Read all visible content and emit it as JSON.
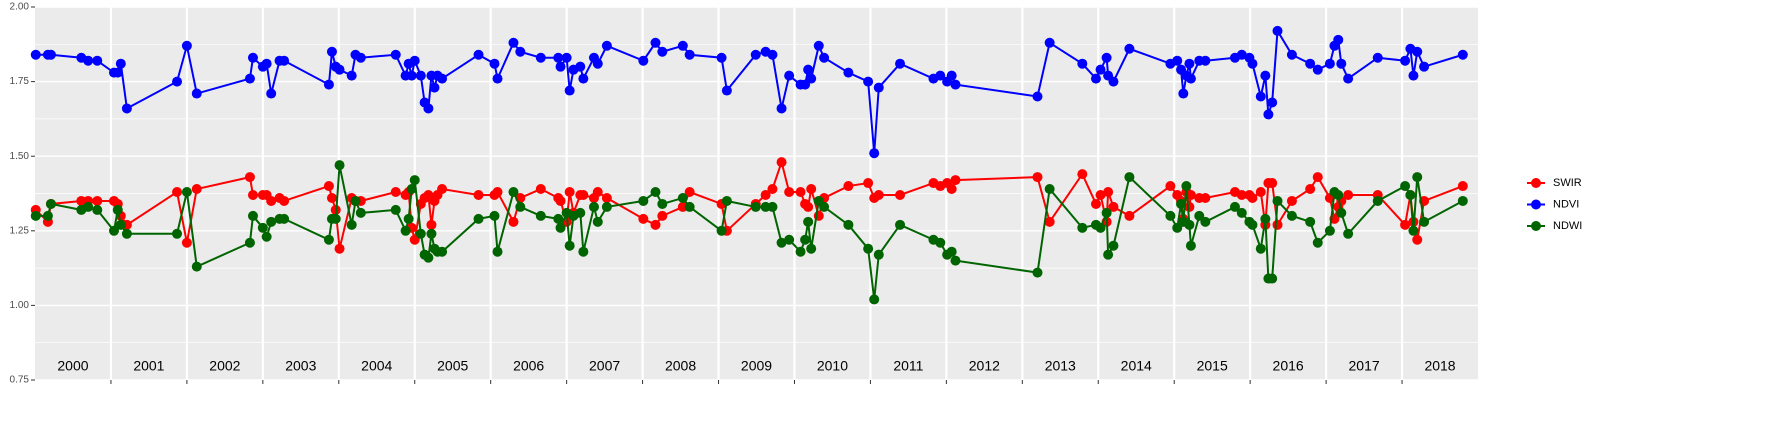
{
  "chart_data": {
    "type": "line",
    "x": [
      2000.01,
      2000.17,
      2000.21,
      2000.61,
      2000.7,
      2000.82,
      2001.04,
      2001.09,
      2001.13,
      2001.21,
      2001.87,
      2002.0,
      2002.13,
      2002.83,
      2002.87,
      2003.0,
      2003.05,
      2003.11,
      2003.22,
      2003.28,
      2003.87,
      2003.91,
      2003.96,
      2004.01,
      2004.17,
      2004.22,
      2004.29,
      2004.75,
      2004.88,
      2004.92,
      2004.96,
      2005.0,
      2005.08,
      2005.13,
      2005.18,
      2005.22,
      2005.26,
      2005.3,
      2005.36,
      2005.84,
      2006.05,
      2006.09,
      2006.3,
      2006.39,
      2006.66,
      2006.89,
      2006.92,
      2007.0,
      2007.04,
      2007.09,
      2007.18,
      2007.22,
      2007.36,
      2007.41,
      2007.53,
      2008.01,
      2008.17,
      2008.26,
      2008.53,
      2008.62,
      2009.04,
      2009.11,
      2009.49,
      2009.62,
      2009.71,
      2009.83,
      2009.93,
      2010.08,
      2010.14,
      2010.18,
      2010.22,
      2010.32,
      2010.39,
      2010.71,
      2010.97,
      2011.05,
      2011.11,
      2011.39,
      2011.83,
      2011.92,
      2012.01,
      2012.07,
      2012.12,
      2013.2,
      2013.36,
      2013.79,
      2013.97,
      2014.03,
      2014.11,
      2014.13,
      2014.2,
      2014.41,
      2014.95,
      2015.04,
      2015.09,
      2015.12,
      2015.16,
      2015.2,
      2015.22,
      2015.33,
      2015.41,
      2015.8,
      2015.89,
      2015.99,
      2016.03,
      2016.14,
      2016.2,
      2016.24,
      2016.29,
      2016.36,
      2016.55,
      2016.79,
      2016.89,
      2017.05,
      2017.11,
      2017.16,
      2017.2,
      2017.29,
      2017.68,
      2018.04,
      2018.11,
      2018.15,
      2018.2,
      2018.29,
      2018.8
    ],
    "series": [
      {
        "name": "SWIR",
        "color": "#ff0000",
        "values": [
          1.32,
          1.28,
          1.34,
          1.35,
          1.35,
          1.35,
          1.35,
          1.34,
          1.3,
          1.27,
          1.38,
          1.21,
          1.39,
          1.43,
          1.37,
          1.37,
          1.37,
          1.35,
          1.36,
          1.35,
          1.4,
          1.36,
          1.32,
          1.19,
          1.36,
          1.35,
          1.35,
          1.38,
          1.37,
          1.38,
          1.26,
          1.22,
          1.34,
          1.36,
          1.37,
          1.27,
          1.35,
          1.37,
          1.39,
          1.37,
          1.37,
          1.38,
          1.28,
          1.36,
          1.39,
          1.36,
          1.35,
          1.28,
          1.38,
          1.31,
          1.37,
          1.37,
          1.36,
          1.38,
          1.36,
          1.29,
          1.27,
          1.3,
          1.33,
          1.38,
          1.34,
          1.25,
          1.34,
          1.37,
          1.39,
          1.48,
          1.38,
          1.38,
          1.34,
          1.33,
          1.39,
          1.3,
          1.36,
          1.4,
          1.41,
          1.36,
          1.37,
          1.37,
          1.41,
          1.4,
          1.41,
          1.39,
          1.42,
          1.43,
          1.28,
          1.44,
          1.34,
          1.37,
          1.28,
          1.38,
          1.33,
          1.3,
          1.4,
          1.37,
          1.35,
          1.29,
          1.38,
          1.33,
          1.37,
          1.36,
          1.36,
          1.38,
          1.37,
          1.37,
          1.36,
          1.38,
          1.27,
          1.41,
          1.41,
          1.27,
          1.35,
          1.39,
          1.43,
          1.36,
          1.29,
          1.33,
          1.35,
          1.37,
          1.37,
          1.27,
          1.37,
          1.28,
          1.22,
          1.35,
          1.4
        ]
      },
      {
        "name": "NDVI",
        "color": "#0000ff",
        "values": [
          1.84,
          1.84,
          1.84,
          1.83,
          1.82,
          1.82,
          1.78,
          1.78,
          1.81,
          1.66,
          1.75,
          1.87,
          1.71,
          1.76,
          1.83,
          1.8,
          1.81,
          1.71,
          1.82,
          1.82,
          1.74,
          1.85,
          1.8,
          1.79,
          1.77,
          1.84,
          1.83,
          1.84,
          1.77,
          1.81,
          1.77,
          1.82,
          1.77,
          1.68,
          1.66,
          1.77,
          1.73,
          1.77,
          1.76,
          1.84,
          1.81,
          1.76,
          1.88,
          1.85,
          1.83,
          1.83,
          1.8,
          1.83,
          1.72,
          1.79,
          1.8,
          1.76,
          1.83,
          1.81,
          1.87,
          1.82,
          1.88,
          1.85,
          1.87,
          1.84,
          1.83,
          1.72,
          1.84,
          1.85,
          1.84,
          1.66,
          1.77,
          1.74,
          1.74,
          1.79,
          1.76,
          1.87,
          1.83,
          1.78,
          1.75,
          1.51,
          1.73,
          1.81,
          1.76,
          1.77,
          1.75,
          1.77,
          1.74,
          1.7,
          1.88,
          1.81,
          1.76,
          1.79,
          1.83,
          1.77,
          1.75,
          1.86,
          1.81,
          1.82,
          1.79,
          1.71,
          1.77,
          1.81,
          1.76,
          1.82,
          1.82,
          1.83,
          1.84,
          1.83,
          1.81,
          1.7,
          1.77,
          1.64,
          1.68,
          1.92,
          1.84,
          1.81,
          1.79,
          1.81,
          1.87,
          1.89,
          1.81,
          1.76,
          1.83,
          1.82,
          1.86,
          1.77,
          1.85,
          1.8,
          1.84
        ]
      },
      {
        "name": "NDWI",
        "color": "#006400",
        "values": [
          1.3,
          1.3,
          1.34,
          1.32,
          1.33,
          1.32,
          1.25,
          1.32,
          1.27,
          1.24,
          1.24,
          1.38,
          1.13,
          1.21,
          1.3,
          1.26,
          1.23,
          1.28,
          1.29,
          1.29,
          1.22,
          1.29,
          1.29,
          1.47,
          1.27,
          1.35,
          1.31,
          1.32,
          1.25,
          1.29,
          1.39,
          1.42,
          1.24,
          1.17,
          1.16,
          1.24,
          1.19,
          1.18,
          1.18,
          1.29,
          1.3,
          1.18,
          1.38,
          1.33,
          1.3,
          1.29,
          1.26,
          1.31,
          1.2,
          1.3,
          1.31,
          1.18,
          1.33,
          1.28,
          1.33,
          1.35,
          1.38,
          1.34,
          1.36,
          1.33,
          1.25,
          1.35,
          1.33,
          1.33,
          1.33,
          1.21,
          1.22,
          1.18,
          1.22,
          1.28,
          1.19,
          1.35,
          1.33,
          1.27,
          1.19,
          1.02,
          1.17,
          1.27,
          1.22,
          1.21,
          1.17,
          1.18,
          1.15,
          1.11,
          1.39,
          1.26,
          1.27,
          1.26,
          1.31,
          1.17,
          1.2,
          1.43,
          1.3,
          1.26,
          1.34,
          1.28,
          1.4,
          1.27,
          1.2,
          1.3,
          1.28,
          1.33,
          1.31,
          1.28,
          1.27,
          1.19,
          1.29,
          1.09,
          1.09,
          1.35,
          1.3,
          1.28,
          1.21,
          1.25,
          1.38,
          1.37,
          1.31,
          1.24,
          1.35,
          1.4,
          1.37,
          1.25,
          1.43,
          1.28,
          1.35
        ]
      }
    ],
    "xlim": [
      2000,
      2019
    ],
    "xticks": [
      2001,
      2002,
      2003,
      2004,
      2005,
      2006,
      2007,
      2008,
      2009,
      2010,
      2011,
      2012,
      2013,
      2014,
      2015,
      2016,
      2017,
      2018
    ],
    "year_labels": [
      "2000",
      "2001",
      "2002",
      "2003",
      "2004",
      "2005",
      "2006",
      "2007",
      "2008",
      "2009",
      "2010",
      "2011",
      "2012",
      "2013",
      "2014",
      "2015",
      "2016",
      "2017",
      "2018"
    ],
    "ylim": [
      0.75,
      2.0
    ],
    "yticks": [
      {
        "value": 0.75,
        "label": "0.75"
      },
      {
        "value": 1.0,
        "label": "1.00"
      },
      {
        "value": 1.25,
        "label": "1.25"
      },
      {
        "value": 1.5,
        "label": "1.50"
      },
      {
        "value": 1.75,
        "label": "1.75"
      },
      {
        "value": 2.0,
        "label": "2.00"
      }
    ],
    "yminorticks": [
      0.875,
      1.125,
      1.375,
      1.625,
      1.875
    ],
    "grid": true,
    "legend": "right"
  }
}
